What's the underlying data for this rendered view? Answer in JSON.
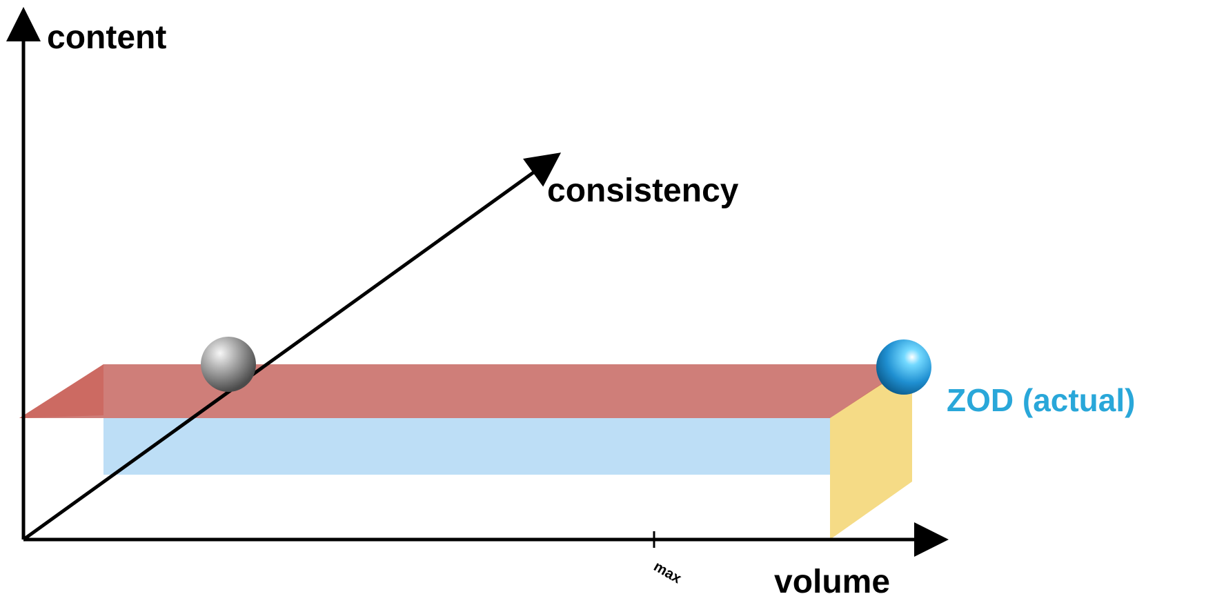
{
  "axes": {
    "y_label": "content",
    "depth_label": "consistency",
    "x_label": "volume",
    "x_tick_label": "max"
  },
  "points": {
    "actual_label": "ZOD (actual)"
  },
  "colors": {
    "axis": "#000000",
    "top_face": "#c5625c",
    "side_face_left": "#ea7e6b",
    "front_face": "#b9dcf6",
    "end_face": "#f3d36b",
    "actual_point": "#29a7d9",
    "reference_point": "#8f8f8f"
  }
}
